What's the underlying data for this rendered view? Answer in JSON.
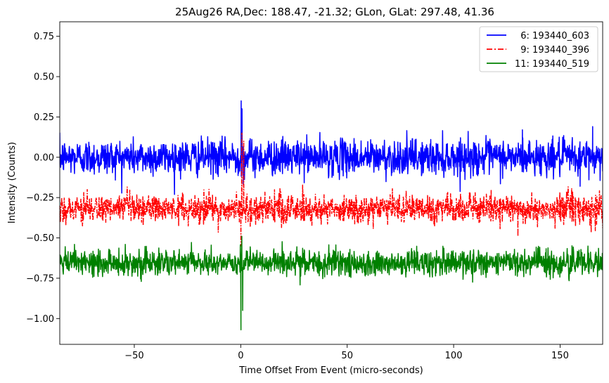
{
  "chart_data": {
    "type": "line",
    "title": "25Aug26 RA,Dec:  188.47, -21.32; GLon, GLat:  297.48,  41.36",
    "xlabel": "Time Offset From Event (micro-seconds)",
    "ylabel": "Intensity (Counts)",
    "xlim": [
      -85,
      170
    ],
    "ylim": [
      -1.16,
      0.84
    ],
    "xticks": [
      -50,
      0,
      50,
      100,
      150
    ],
    "xtick_labels": [
      "−50",
      "0",
      "50",
      "100",
      "150"
    ],
    "yticks": [
      0.75,
      0.5,
      0.25,
      0.0,
      -0.25,
      -0.5,
      -0.75,
      -1.0
    ],
    "ytick_labels": [
      "0.75",
      "0.50",
      "0.25",
      "0.00",
      "−0.25",
      "−0.50",
      "−0.75",
      "−1.00"
    ],
    "legend_position": "top-right",
    "series": [
      {
        "name": "6: 193440_603",
        "legend_label": "  6: 193440_603",
        "color": "#0000ff",
        "style": "solid",
        "x_start": -85,
        "x_end": 170,
        "baseline": 0.0,
        "noise_std": 0.055,
        "peaks": [
          {
            "x": 0.2,
            "y": 0.35
          },
          {
            "x": 0.6,
            "y": 0.3
          },
          {
            "x": 1.2,
            "y": -0.17
          },
          {
            "x": 132.3,
            "y": 0.17
          },
          {
            "x": 165.3,
            "y": 0.19
          },
          {
            "x": 159.4,
            "y": -0.18
          }
        ]
      },
      {
        "name": "9: 193440_396",
        "legend_label": "  9: 193440_396",
        "color": "#ff0000",
        "style": "dashdot",
        "x_start": -85,
        "x_end": 170,
        "baseline": -0.32,
        "noise_std": 0.045,
        "peaks": [
          {
            "x": 0.5,
            "y": 0.15
          },
          {
            "x": 0.1,
            "y": -0.55
          },
          {
            "x": 1.4,
            "y": 0.1
          },
          {
            "x": 130.2,
            "y": -0.49
          }
        ]
      },
      {
        "name": "11: 193440_519",
        "legend_label": "11: 193440_519",
        "color": "#008000",
        "style": "solid",
        "x_start": -85,
        "x_end": 170,
        "baseline": -0.655,
        "noise_std": 0.04,
        "peaks": [
          {
            "x": 0.1,
            "y": -1.07
          },
          {
            "x": 0.5,
            "y": -0.49
          },
          {
            "x": 0.9,
            "y": -0.95
          }
        ]
      }
    ]
  }
}
